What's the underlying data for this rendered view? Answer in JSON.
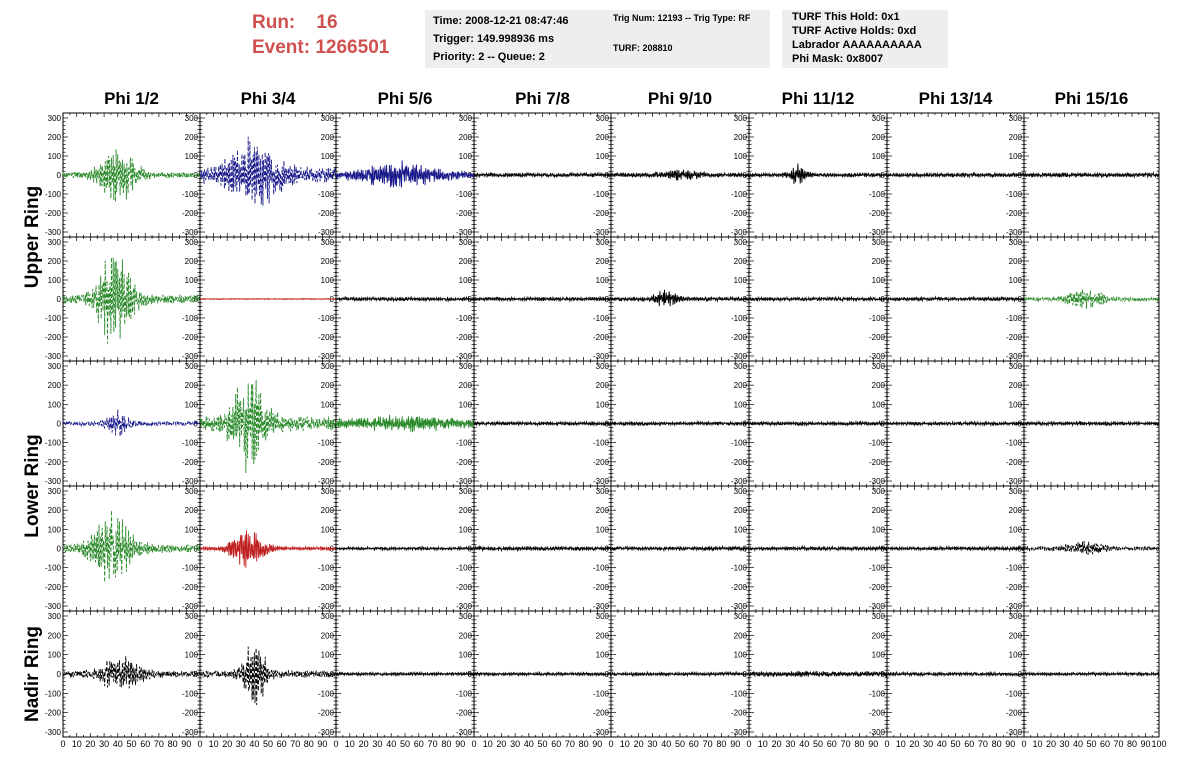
{
  "header": {
    "run_label": "Run:",
    "run_value": "16",
    "event_label": "Event:",
    "event_value": "1266501",
    "colors": {
      "run_text": "#d05050",
      "info_bg": "#eeeeee"
    }
  },
  "info_panels": [
    {
      "lines": [
        "Time: 2008-12-21 08:47:46",
        "Trigger: 149.998936 ms",
        "Priority: 2 -- Queue: 2"
      ]
    },
    {
      "lines": [
        "Trig Num: 12193 -- Trig Type: RF",
        "TURF: 208810"
      ]
    },
    {
      "lines": [
        "TURF This Hold: 0x1",
        "TURF Active Holds: 0xd",
        "Labrador AAAAAAAAAA",
        "Phi Mask: 0x8007"
      ]
    }
  ],
  "chart_data": {
    "type": "line",
    "columns": [
      "Phi 1/2",
      "Phi 3/4",
      "Phi 5/6",
      "Phi 7/8",
      "Phi 9/10",
      "Phi 11/12",
      "Phi 13/14",
      "Phi 15/16"
    ],
    "row_groups": [
      {
        "label": "Upper Ring",
        "rows": [
          0,
          1
        ]
      },
      {
        "label": "Lower Ring",
        "rows": [
          2,
          3
        ]
      },
      {
        "label": "Nadir Ring",
        "rows": [
          4
        ]
      }
    ],
    "x_range": [
      0,
      100
    ],
    "x_tick_labels": [
      "0",
      "10",
      "20",
      "30",
      "40",
      "50",
      "60",
      "70",
      "80",
      "90",
      "100"
    ],
    "y_range": [
      -300,
      300
    ],
    "y_tick_labels": [
      "300",
      "200",
      "100",
      "0",
      "-100",
      "-200",
      "-300"
    ],
    "series_colors": {
      "black": "#000000",
      "green": "#2a8a2a",
      "blue": "#1a1a8c",
      "red": "#c02020"
    },
    "waveforms": [
      [
        {
          "color": "green",
          "dashed": true,
          "noise": 18,
          "peak": 140,
          "center": 40,
          "width": 10
        },
        {
          "color": "blue",
          "dashed": true,
          "noise": 45,
          "peak": 170,
          "center": 38,
          "width": 14
        },
        {
          "color": "blue",
          "dashed": false,
          "noise": 20,
          "peak": 60,
          "center": 45,
          "width": 20
        },
        {
          "color": "black",
          "dashed": false,
          "noise": 12,
          "peak": 0,
          "center": 50,
          "width": 10
        },
        {
          "color": "black",
          "dashed": false,
          "noise": 13,
          "peak": 20,
          "center": 50,
          "width": 10
        },
        {
          "color": "black",
          "dashed": false,
          "noise": 12,
          "peak": 50,
          "center": 35,
          "width": 4
        },
        {
          "color": "black",
          "dashed": false,
          "noise": 12,
          "peak": 0,
          "center": 50,
          "width": 10
        },
        {
          "color": "black",
          "dashed": false,
          "noise": 13,
          "peak": 0,
          "center": 50,
          "width": 10
        }
      ],
      [
        {
          "color": "green",
          "dashed": true,
          "noise": 25,
          "peak": 260,
          "center": 38,
          "width": 9
        },
        {
          "color": "red",
          "dashed": false,
          "noise": 3,
          "peak": 0,
          "center": 50,
          "width": 10
        },
        {
          "color": "black",
          "dashed": false,
          "noise": 11,
          "peak": 0,
          "center": 50,
          "width": 10
        },
        {
          "color": "black",
          "dashed": false,
          "noise": 11,
          "peak": 0,
          "center": 50,
          "width": 10
        },
        {
          "color": "black",
          "dashed": false,
          "noise": 12,
          "peak": 45,
          "center": 40,
          "width": 6
        },
        {
          "color": "black",
          "dashed": false,
          "noise": 11,
          "peak": 0,
          "center": 50,
          "width": 10
        },
        {
          "color": "black",
          "dashed": false,
          "noise": 11,
          "peak": 0,
          "center": 50,
          "width": 10
        },
        {
          "color": "green",
          "dashed": true,
          "noise": 12,
          "peak": 50,
          "center": 45,
          "width": 10
        }
      ],
      [
        {
          "color": "blue",
          "dashed": true,
          "noise": 12,
          "peak": 60,
          "center": 40,
          "width": 6
        },
        {
          "color": "green",
          "dashed": true,
          "noise": 40,
          "peak": 230,
          "center": 36,
          "width": 10
        },
        {
          "color": "green",
          "dashed": false,
          "noise": 30,
          "peak": 20,
          "center": 50,
          "width": 20
        },
        {
          "color": "black",
          "dashed": false,
          "noise": 11,
          "peak": 0,
          "center": 50,
          "width": 10
        },
        {
          "color": "black",
          "dashed": false,
          "noise": 11,
          "peak": 0,
          "center": 50,
          "width": 10
        },
        {
          "color": "black",
          "dashed": false,
          "noise": 11,
          "peak": 0,
          "center": 50,
          "width": 10
        },
        {
          "color": "black",
          "dashed": false,
          "noise": 11,
          "peak": 0,
          "center": 50,
          "width": 10
        },
        {
          "color": "black",
          "dashed": false,
          "noise": 11,
          "peak": 0,
          "center": 50,
          "width": 10
        }
      ],
      [
        {
          "color": "green",
          "dashed": true,
          "noise": 25,
          "peak": 190,
          "center": 36,
          "width": 10
        },
        {
          "color": "red",
          "dashed": false,
          "noise": 10,
          "peak": 110,
          "center": 35,
          "width": 9
        },
        {
          "color": "black",
          "dashed": false,
          "noise": 9,
          "peak": 0,
          "center": 50,
          "width": 10
        },
        {
          "color": "black",
          "dashed": false,
          "noise": 12,
          "peak": 0,
          "center": 50,
          "width": 10
        },
        {
          "color": "black",
          "dashed": false,
          "noise": 11,
          "peak": 0,
          "center": 50,
          "width": 10
        },
        {
          "color": "black",
          "dashed": false,
          "noise": 11,
          "peak": 0,
          "center": 50,
          "width": 10
        },
        {
          "color": "black",
          "dashed": false,
          "noise": 11,
          "peak": 0,
          "center": 50,
          "width": 10
        },
        {
          "color": "black",
          "dashed": true,
          "noise": 12,
          "peak": 30,
          "center": 45,
          "width": 10
        }
      ],
      [
        {
          "color": "black",
          "dashed": true,
          "noise": 20,
          "peak": 90,
          "center": 42,
          "width": 10
        },
        {
          "color": "black",
          "dashed": true,
          "noise": 20,
          "peak": 170,
          "center": 40,
          "width": 6
        },
        {
          "color": "black",
          "dashed": false,
          "noise": 9,
          "peak": 0,
          "center": 50,
          "width": 10
        },
        {
          "color": "black",
          "dashed": false,
          "noise": 9,
          "peak": 0,
          "center": 50,
          "width": 10
        },
        {
          "color": "black",
          "dashed": false,
          "noise": 10,
          "peak": 0,
          "center": 50,
          "width": 10
        },
        {
          "color": "black",
          "dashed": false,
          "noise": 16,
          "peak": 0,
          "center": 50,
          "width": 10
        },
        {
          "color": "black",
          "dashed": false,
          "noise": 10,
          "peak": 0,
          "center": 50,
          "width": 10
        },
        {
          "color": "black",
          "dashed": false,
          "noise": 9,
          "peak": 0,
          "center": 50,
          "width": 10
        }
      ]
    ]
  }
}
